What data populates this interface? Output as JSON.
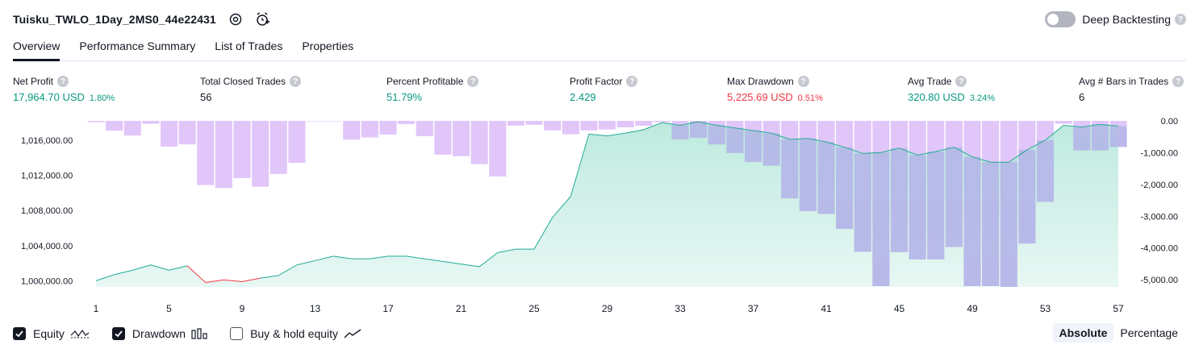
{
  "header": {
    "title": "Tuisku_TWLO_1Day_2MS0_44e22431",
    "deep_backtesting_label": "Deep Backtesting",
    "deep_backtesting_on": false,
    "help_glyph": "?"
  },
  "tabs": [
    {
      "label": "Overview",
      "active": true
    },
    {
      "label": "Performance Summary",
      "active": false
    },
    {
      "label": "List of Trades",
      "active": false
    },
    {
      "label": "Properties",
      "active": false
    }
  ],
  "metrics": {
    "net_profit": {
      "label": "Net Profit",
      "value": "17,964.70 USD",
      "pct": "1.80%"
    },
    "total_closed_trades": {
      "label": "Total Closed Trades",
      "value": "56"
    },
    "percent_profitable": {
      "label": "Percent Profitable",
      "value": "51.79%"
    },
    "profit_factor": {
      "label": "Profit Factor",
      "value": "2.429"
    },
    "max_drawdown": {
      "label": "Max Drawdown",
      "value": "5,225.69 USD",
      "pct": "0.51%"
    },
    "avg_trade": {
      "label": "Avg Trade",
      "value": "320.80 USD",
      "pct": "3.24%"
    },
    "avg_bars": {
      "label": "Avg # Bars in Trades",
      "value": "6"
    }
  },
  "colors": {
    "positive": "#089981",
    "negative": "#f23645",
    "equity_line": "#22ab94",
    "equity_fill": "#b2e6d9",
    "drawdown_bar": "#e1c6fa",
    "drawdown_overlap": "#b4b5e8"
  },
  "chart_data": {
    "type": "area",
    "x": [
      1,
      2,
      3,
      4,
      5,
      6,
      7,
      8,
      9,
      10,
      11,
      12,
      13,
      14,
      15,
      16,
      17,
      18,
      19,
      20,
      21,
      22,
      23,
      24,
      25,
      26,
      27,
      28,
      29,
      30,
      31,
      32,
      33,
      34,
      35,
      36,
      37,
      38,
      39,
      40,
      41,
      42,
      43,
      44,
      45,
      46,
      47,
      48,
      49,
      50,
      51,
      52,
      53,
      54,
      55,
      56,
      57
    ],
    "x_ticks": [
      "1",
      "5",
      "9",
      "13",
      "17",
      "21",
      "25",
      "29",
      "33",
      "37",
      "41",
      "45",
      "49",
      "53",
      "57"
    ],
    "series": [
      {
        "name": "Equity",
        "axis": "left",
        "values": [
          1000000,
          1000700,
          1001200,
          1001800,
          1001200,
          1001700,
          999800,
          1000100,
          999900,
          1000300,
          1000600,
          1001800,
          1002300,
          1002800,
          1002500,
          1002500,
          1002800,
          1002800,
          1002500,
          1002200,
          1001900,
          1001600,
          1003200,
          1003600,
          1003600,
          1007200,
          1009600,
          1016700,
          1016500,
          1016800,
          1017200,
          1018000,
          1017700,
          1018100,
          1017700,
          1017400,
          1017100,
          1016800,
          1016100,
          1016200,
          1015800,
          1015200,
          1014500,
          1014600,
          1015100,
          1014300,
          1014700,
          1015200,
          1014100,
          1013500,
          1013500,
          1014900,
          1016000,
          1017700,
          1017500,
          1017800,
          1017600
        ],
        "negative_points": [
          7,
          9
        ]
      },
      {
        "name": "Drawdown",
        "axis": "right",
        "values": [
          -40,
          -310,
          -460,
          -90,
          -810,
          -740,
          -2020,
          -2110,
          -1800,
          -2070,
          -1670,
          -1320,
          0,
          0,
          -590,
          -520,
          -430,
          -100,
          -480,
          -1060,
          -1110,
          -1360,
          -1750,
          -150,
          -120,
          -300,
          -420,
          -300,
          -270,
          -200,
          -150,
          -40,
          -580,
          -530,
          -740,
          -1010,
          -1290,
          -1410,
          -2440,
          -2840,
          -2930,
          -3400,
          -4120,
          -5200,
          -4130,
          -4360,
          -4360,
          -3970,
          -5200,
          -5200,
          -5225.69,
          -3860,
          -2550,
          -90,
          -930,
          -930,
          -820
        ]
      }
    ],
    "y_left": {
      "range": [
        999300,
        1018200
      ],
      "ticks": [
        1000000,
        1004000,
        1008000,
        1012000,
        1016000
      ],
      "tick_labels": [
        "1,000,000.00",
        "1,004,000.00",
        "1,008,000.00",
        "1,012,000.00",
        "1,016,000.00"
      ]
    },
    "y_right": {
      "range": [
        -5225.69,
        0
      ],
      "ticks": [
        0,
        -1000,
        -2000,
        -3000,
        -4000,
        -5000
      ],
      "tick_labels": [
        "0.00",
        "-1,000.00",
        "-2,000.00",
        "-3,000.00",
        "-4,000.00",
        "-5,000.00"
      ]
    },
    "grid": false,
    "legend_placement": "bottom-left"
  },
  "legend": [
    {
      "label": "Equity",
      "checked": true,
      "icon": "equity-line-icon"
    },
    {
      "label": "Drawdown",
      "checked": true,
      "icon": "drawdown-bars-icon"
    },
    {
      "label": "Buy & hold equity",
      "checked": false,
      "icon": "buyhold-line-icon"
    }
  ],
  "modes": [
    {
      "label": "Absolute",
      "active": true
    },
    {
      "label": "Percentage",
      "active": false
    }
  ]
}
